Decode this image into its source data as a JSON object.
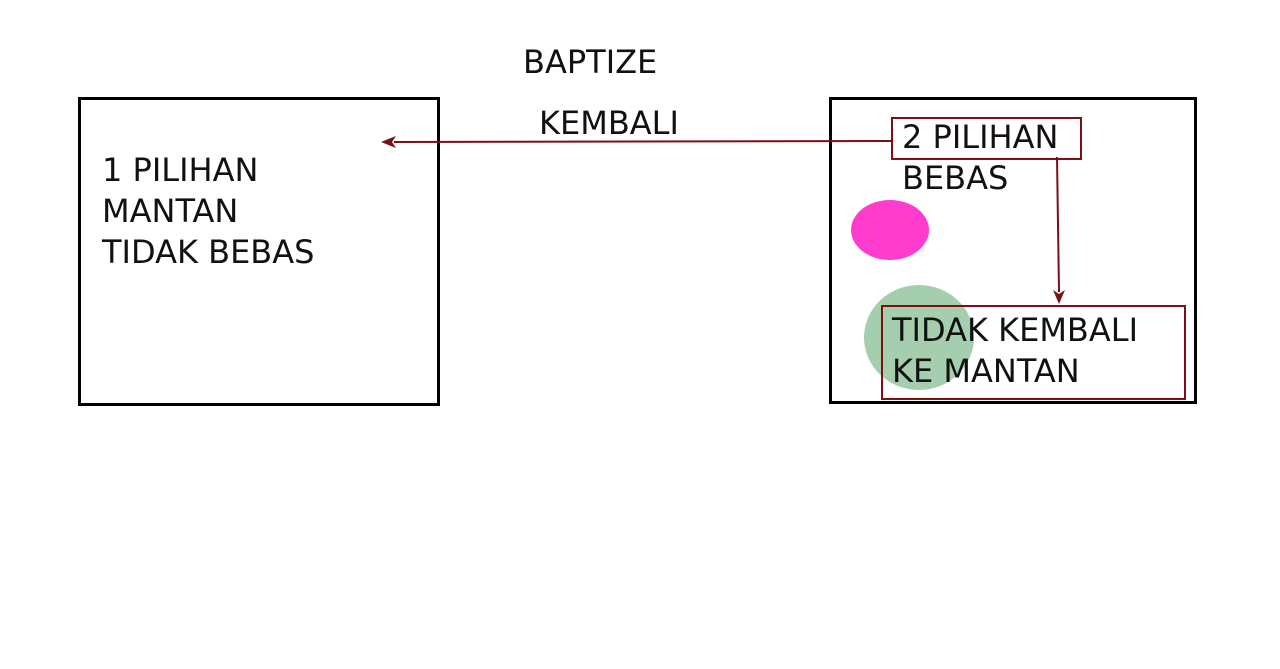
{
  "diagram": {
    "title": "BAPTIZE",
    "arrow_label": "KEMBALI",
    "left_box": {
      "lines": [
        "1 PILIHAN",
        "MANTAN",
        "TIDAK BEBAS"
      ]
    },
    "right_box": {
      "lines": [
        "2 PILIHAN",
        "BEBAS"
      ],
      "result_lines": [
        "TIDAK KEMBALI",
        "KE MANTAN"
      ]
    },
    "colors": {
      "arrow": "#7b0f12",
      "pink_dot": "#ff3ccd",
      "green_dot": "#5aa66a"
    }
  }
}
